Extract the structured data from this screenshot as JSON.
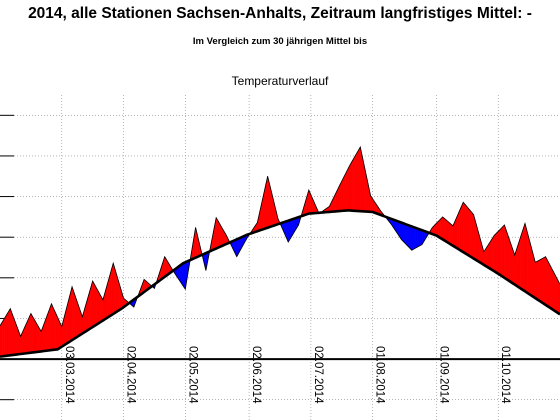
{
  "header": {
    "title": "2014, alle Stationen Sachsen-Anhalts, Zeitraum langfristiges Mittel: -",
    "subtitle": "Im Vergleich zum 30 jährigen Mittel bis"
  },
  "chart_data": {
    "type": "area",
    "title": "Temperaturverlauf",
    "xlabel": "",
    "ylabel": "",
    "x_start": "2014-02-01",
    "x_end": "2014-10-31",
    "ylim": [
      -7.5,
      32.5
    ],
    "yticks": [
      -5,
      0,
      5,
      10,
      15,
      20,
      25,
      30
    ],
    "zero_line": 0,
    "grid": true,
    "xtick_labels": [
      "03.03.2014",
      "02.04.2014",
      "02.05.2014",
      "02.06.2014",
      "02.07.2014",
      "01.08.2014",
      "01.09.2014",
      "01.10.2014"
    ],
    "xtick_dates": [
      "2014-03-03",
      "2014-04-02",
      "2014-05-02",
      "2014-06-02",
      "2014-07-02",
      "2014-08-01",
      "2014-09-01",
      "2014-10-01"
    ],
    "colors": {
      "above": "#ff0000",
      "below": "#0000ff",
      "mean_line": "#000000",
      "axis": "#000000"
    },
    "series": [
      {
        "name": "langfristiges Mittel",
        "x": [
          "2014-02-01",
          "2014-03-01",
          "2014-04-01",
          "2014-05-01",
          "2014-06-01",
          "2014-07-01",
          "2014-07-20",
          "2014-08-01",
          "2014-09-01",
          "2014-10-01",
          "2014-10-31"
        ],
        "values": [
          0.3,
          1.2,
          6.2,
          11.8,
          15.3,
          17.9,
          18.3,
          18.1,
          15.2,
          10.5,
          5.5
        ]
      },
      {
        "name": "2014",
        "x": [
          "2014-02-01",
          "2014-02-06",
          "2014-02-11",
          "2014-02-16",
          "2014-02-21",
          "2014-02-26",
          "2014-03-03",
          "2014-03-08",
          "2014-03-13",
          "2014-03-18",
          "2014-03-23",
          "2014-03-28",
          "2014-04-02",
          "2014-04-07",
          "2014-04-12",
          "2014-04-17",
          "2014-04-22",
          "2014-04-27",
          "2014-05-02",
          "2014-05-07",
          "2014-05-12",
          "2014-05-17",
          "2014-05-22",
          "2014-05-27",
          "2014-06-01",
          "2014-06-06",
          "2014-06-11",
          "2014-06-16",
          "2014-06-21",
          "2014-06-26",
          "2014-07-01",
          "2014-07-06",
          "2014-07-11",
          "2014-07-16",
          "2014-07-21",
          "2014-07-26",
          "2014-07-31",
          "2014-08-05",
          "2014-08-10",
          "2014-08-15",
          "2014-08-20",
          "2014-08-25",
          "2014-08-30",
          "2014-09-04",
          "2014-09-09",
          "2014-09-14",
          "2014-09-19",
          "2014-09-24",
          "2014-09-29",
          "2014-10-04",
          "2014-10-09",
          "2014-10-14",
          "2014-10-19",
          "2014-10-24",
          "2014-10-31"
        ],
        "values": [
          4.1,
          6.2,
          2.8,
          5.6,
          3.4,
          6.8,
          4.0,
          8.9,
          5.2,
          9.6,
          7.3,
          11.8,
          7.5,
          6.4,
          9.8,
          8.7,
          12.6,
          10.5,
          8.6,
          16.2,
          10.9,
          17.4,
          15.2,
          12.6,
          14.9,
          16.8,
          22.5,
          17.3,
          14.4,
          16.5,
          20.8,
          17.9,
          18.8,
          21.4,
          23.9,
          26.1,
          20.1,
          18.2,
          16.6,
          14.7,
          13.4,
          14.1,
          16.2,
          17.5,
          16.4,
          19.3,
          17.8,
          13.2,
          15.2,
          16.5,
          12.8,
          16.7,
          11.9,
          12.6,
          9.2
        ]
      }
    ]
  }
}
